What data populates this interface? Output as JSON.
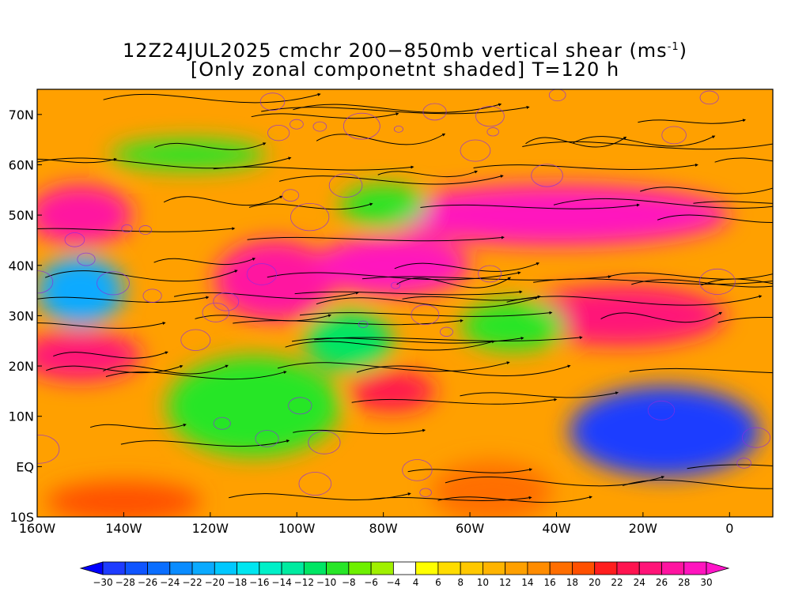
{
  "header": {
    "title_line1": "12Z24JUL2025 cmchr 200−850mb vertical shear (ms",
    "title_unit_sup": "-1",
    "title_line1_end": ")",
    "title_line2": "[Only zonal componetnt shaded] T=120 h"
  },
  "axes": {
    "lat_labels": [
      {
        "text": "70N",
        "lat": 70
      },
      {
        "text": "60N",
        "lat": 60
      },
      {
        "text": "50N",
        "lat": 50
      },
      {
        "text": "40N",
        "lat": 40
      },
      {
        "text": "30N",
        "lat": 30
      },
      {
        "text": "20N",
        "lat": 20
      },
      {
        "text": "10N",
        "lat": 10
      },
      {
        "text": "EQ",
        "lat": 0
      },
      {
        "text": "10S",
        "lat": -10
      }
    ],
    "lon_labels": [
      {
        "text": "160W",
        "lon": -160
      },
      {
        "text": "140W",
        "lon": -140
      },
      {
        "text": "120W",
        "lon": -120
      },
      {
        "text": "100W",
        "lon": -100
      },
      {
        "text": "80W",
        "lon": -80
      },
      {
        "text": "60W",
        "lon": -60
      },
      {
        "text": "40W",
        "lon": -40
      },
      {
        "text": "20W",
        "lon": -20
      },
      {
        "text": "0",
        "lon": 0
      }
    ],
    "lon_range": [
      -160,
      10
    ],
    "lat_range": [
      -10,
      75
    ]
  },
  "colorbar": {
    "labels": [
      "-30",
      "-28",
      "-26",
      "-24",
      "-22",
      "-20",
      "-18",
      "-16",
      "-14",
      "-12",
      "-10",
      "-8",
      "-6",
      "-4",
      "4",
      "6",
      "8",
      "10",
      "12",
      "14",
      "16",
      "18",
      "20",
      "22",
      "24",
      "26",
      "28",
      "30"
    ],
    "colors": [
      "#1e3cff",
      "#0f55ff",
      "#0a6eff",
      "#0a8cff",
      "#0aaaff",
      "#00c8ff",
      "#00e6f0",
      "#00f0c8",
      "#00eba0",
      "#00e664",
      "#28e628",
      "#6ef000",
      "#a0f000",
      "#ffffff",
      "#ffff00",
      "#ffdc00",
      "#ffc800",
      "#ffb400",
      "#ffa000",
      "#ff8c00",
      "#ff6e00",
      "#ff5000",
      "#ff1e1e",
      "#ff1450",
      "#ff1478",
      "#ff14a0",
      "#ff14be"
    ],
    "under_color": "#0000ff",
    "over_color": "#ff14c8"
  },
  "shear_regions": [
    {
      "name": "deep-blue-atlantic",
      "value": -30,
      "cx": -15,
      "cy": 7,
      "rx": 22,
      "ry": 9
    },
    {
      "name": "pink-north-atlantic-jet",
      "value": 28,
      "cx": -40,
      "cy": 50,
      "rx": 40,
      "ry": 6
    },
    {
      "name": "pink-north-pacific",
      "value": 26,
      "cx": -150,
      "cy": 50,
      "rx": 12,
      "ry": 6
    },
    {
      "name": "pink-central-us",
      "value": 26,
      "cx": -105,
      "cy": 37,
      "rx": 14,
      "ry": 8
    },
    {
      "name": "pink-western-atlantic",
      "value": 28,
      "cx": -78,
      "cy": 40,
      "rx": 18,
      "ry": 6
    },
    {
      "name": "red-east-atlantic",
      "value": 24,
      "cx": -25,
      "cy": 30,
      "rx": 24,
      "ry": 6
    },
    {
      "name": "red-caribbean",
      "value": 22,
      "cx": -78,
      "cy": 15,
      "rx": 10,
      "ry": 4
    },
    {
      "name": "pink-subtropical-pacific",
      "value": 24,
      "cx": -150,
      "cy": 22,
      "rx": 14,
      "ry": 5
    },
    {
      "name": "green-east-pacific",
      "value": -10,
      "cx": -110,
      "cy": 12,
      "rx": 20,
      "ry": 10
    },
    {
      "name": "blue-north-pacific",
      "value": -22,
      "cx": -150,
      "cy": 35,
      "rx": 10,
      "ry": 7
    },
    {
      "name": "green-gulf",
      "value": -12,
      "cx": -88,
      "cy": 25,
      "rx": 10,
      "ry": 6
    },
    {
      "name": "green-atlantic-mid",
      "value": -10,
      "cx": -50,
      "cy": 28,
      "rx": 12,
      "ry": 5
    },
    {
      "name": "green-canada",
      "value": -10,
      "cx": -80,
      "cy": 52,
      "rx": 10,
      "ry": 4
    },
    {
      "name": "green-greenland-sea",
      "value": -10,
      "cx": -125,
      "cy": 62,
      "rx": 18,
      "ry": 3
    },
    {
      "name": "orange-south-america",
      "value": 16,
      "cx": -55,
      "cy": -5,
      "rx": 14,
      "ry": 6
    },
    {
      "name": "orange-south-pacific",
      "value": 18,
      "cx": -140,
      "cy": -7,
      "rx": 18,
      "ry": 4
    }
  ]
}
